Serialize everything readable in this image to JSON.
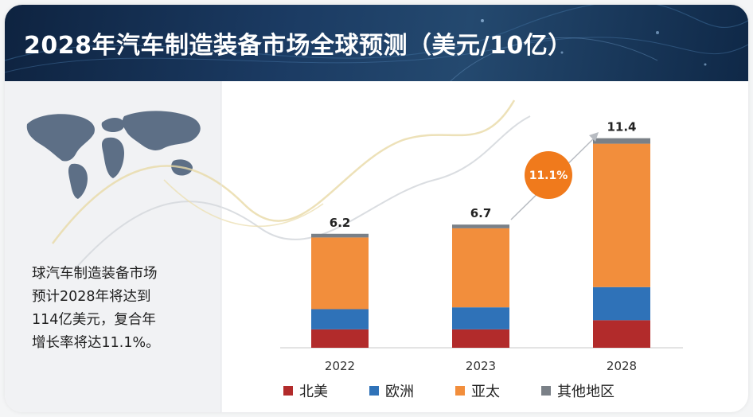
{
  "title": "2028年汽车制造装备市场全球预测（美元/10亿）",
  "summary": [
    "球汽车制造装备市场",
    "预计2028年将达到",
    "114亿美元，复合年",
    "增长率将达11.1%。"
  ],
  "growth_badge": "11.1%",
  "colors": {
    "north_america": "#b22b2b",
    "europe": "#2f72b8",
    "asia_pacific": "#f28e3c",
    "other": "#7a8087",
    "badge": "#f07a1c",
    "header": "#1b3b63"
  },
  "chart_data": {
    "type": "bar",
    "stacked": true,
    "categories": [
      "2022",
      "2023",
      "2028"
    ],
    "totals": [
      "6.2",
      "6.7",
      "11.4"
    ],
    "ylim": [
      0,
      12
    ],
    "series": [
      {
        "name": "北美",
        "key": "north_america",
        "values": [
          1.0,
          1.0,
          1.5
        ]
      },
      {
        "name": "欧洲",
        "key": "europe",
        "values": [
          1.1,
          1.2,
          1.8
        ]
      },
      {
        "name": "亚太",
        "key": "asia_pacific",
        "values": [
          3.9,
          4.3,
          7.8
        ]
      },
      {
        "name": "其他地区",
        "key": "other",
        "values": [
          0.2,
          0.2,
          0.3
        ]
      }
    ],
    "legend_position": "bottom",
    "grid": false
  }
}
